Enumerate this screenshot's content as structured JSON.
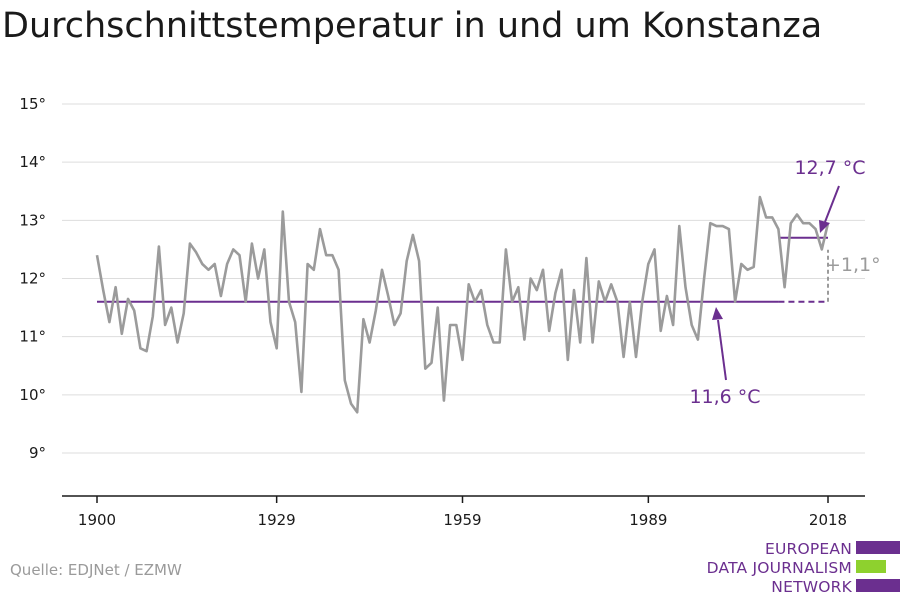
{
  "title": "Durchschnittstemperatur in und um Konstanza",
  "source": "Quelle: EDJNet / EZMW",
  "logo": {
    "lines": [
      "EUROPEAN",
      "DATA JOURNALISM",
      "NETWORK"
    ]
  },
  "colors": {
    "line": "#9b9b9b",
    "accent": "#6b2f8f",
    "logo_green": "#8ed12e",
    "axis": "#1a1a1a",
    "grid": "#dddddd"
  },
  "chart_data": {
    "type": "line",
    "title": "Durchschnittstemperatur in und um Konstanza",
    "xlabel": "",
    "ylabel": "",
    "xlim": [
      1900,
      2018
    ],
    "ylim": [
      8.25,
      15
    ],
    "x_ticks": [
      1900,
      1929,
      1959,
      1989,
      2018
    ],
    "y_ticks": [
      9,
      10,
      11,
      12,
      13,
      14,
      15
    ],
    "y_tick_labels": [
      "9°",
      "10°",
      "11°",
      "12°",
      "13°",
      "14°",
      "15°"
    ],
    "grid": true,
    "x": [
      1900,
      1901,
      1902,
      1903,
      1904,
      1905,
      1906,
      1907,
      1908,
      1909,
      1910,
      1911,
      1912,
      1913,
      1914,
      1915,
      1916,
      1917,
      1918,
      1919,
      1920,
      1921,
      1922,
      1923,
      1924,
      1925,
      1926,
      1927,
      1928,
      1929,
      1930,
      1931,
      1932,
      1933,
      1934,
      1935,
      1936,
      1937,
      1938,
      1939,
      1940,
      1941,
      1942,
      1943,
      1944,
      1945,
      1946,
      1947,
      1948,
      1949,
      1950,
      1951,
      1952,
      1953,
      1954,
      1955,
      1956,
      1957,
      1958,
      1959,
      1960,
      1961,
      1962,
      1963,
      1964,
      1965,
      1966,
      1967,
      1968,
      1969,
      1970,
      1971,
      1972,
      1973,
      1974,
      1975,
      1976,
      1977,
      1978,
      1979,
      1980,
      1981,
      1982,
      1983,
      1984,
      1985,
      1986,
      1987,
      1988,
      1989,
      1990,
      1991,
      1992,
      1993,
      1994,
      1995,
      1996,
      1997,
      1998,
      1999,
      2000,
      2001,
      2002,
      2003,
      2004,
      2005,
      2006,
      2007,
      2008,
      2009,
      2010,
      2011,
      2012,
      2013,
      2014,
      2015,
      2016,
      2017,
      2018
    ],
    "values": [
      12.4,
      11.8,
      11.25,
      11.85,
      11.05,
      11.65,
      11.45,
      10.8,
      10.75,
      11.35,
      12.55,
      11.2,
      11.5,
      10.9,
      11.4,
      12.6,
      12.45,
      12.25,
      12.15,
      12.25,
      11.7,
      12.25,
      12.5,
      12.4,
      11.6,
      12.6,
      12.0,
      12.5,
      11.25,
      10.8,
      13.15,
      11.6,
      11.25,
      10.05,
      12.25,
      12.15,
      12.85,
      12.4,
      12.4,
      12.15,
      10.25,
      9.85,
      9.7,
      11.3,
      10.9,
      11.45,
      12.15,
      11.7,
      11.2,
      11.4,
      12.3,
      12.75,
      12.3,
      10.45,
      10.55,
      11.5,
      9.9,
      11.2,
      11.2,
      10.6,
      11.9,
      11.6,
      11.8,
      11.2,
      10.9,
      10.9,
      12.5,
      11.6,
      11.85,
      10.95,
      12.0,
      11.8,
      12.15,
      11.1,
      11.75,
      12.15,
      10.6,
      11.8,
      10.9,
      12.35,
      10.9,
      11.95,
      11.6,
      11.9,
      11.6,
      10.65,
      11.6,
      10.65,
      11.6,
      12.25,
      12.5,
      11.1,
      11.7,
      11.2,
      12.9,
      11.85,
      11.2,
      10.95,
      12.0,
      12.95,
      12.9,
      12.9,
      12.85,
      11.6,
      12.25,
      12.15,
      12.2,
      13.4,
      13.05,
      13.05,
      12.85,
      11.85,
      12.95,
      13.1,
      12.95,
      12.95,
      12.85,
      12.5,
      12.95
    ],
    "reference": {
      "value": 11.6,
      "label": "11,6 °C",
      "solid_until": 2010,
      "dashed_until": 2018
    },
    "recent": {
      "value": 12.7,
      "from": 2010,
      "to": 2018,
      "label": "12,7 °C"
    },
    "difference_label": "+1,1°"
  }
}
